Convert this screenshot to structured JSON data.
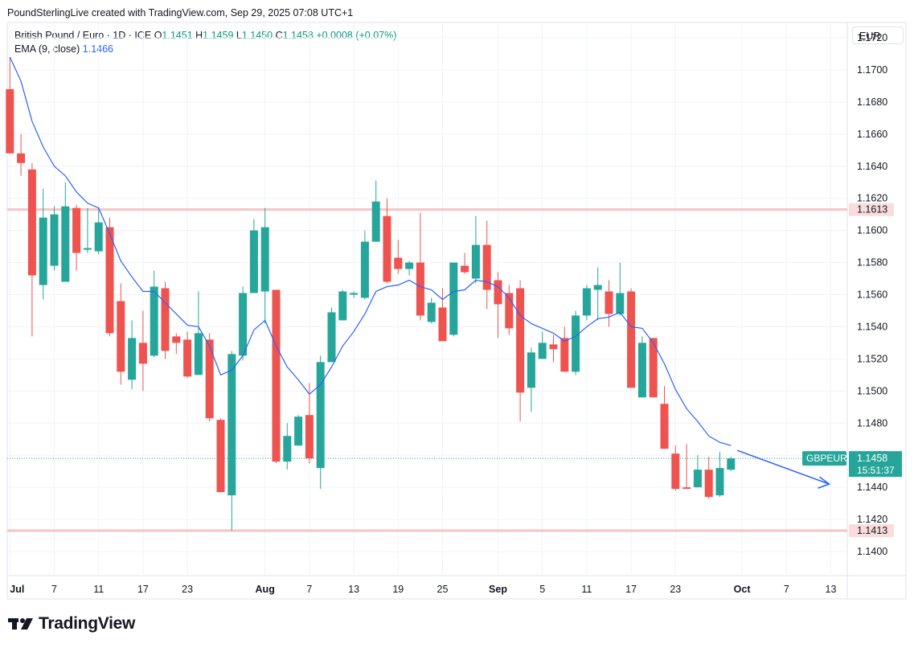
{
  "header": {
    "credit": "PoundSterlingLive created with TradingView.com, Sep 29, 2025 07:08 UTC+1"
  },
  "legend": {
    "symbol": "British Pound / Euro · 1D · ICE",
    "o_label": "O",
    "o_value": "1.1451",
    "h_label": "H",
    "h_value": "1.1459",
    "l_label": "L",
    "l_value": "1.1450",
    "c_label": "C",
    "c_value": "1.1458",
    "change": "+0.0008 (+0.07%)",
    "ema_label": "EMA (9, close)",
    "ema_value": "1.1466"
  },
  "currency_label": "EUR",
  "logo_text": "TradingView",
  "colors": {
    "up": "#26a69a",
    "down": "#ef5350",
    "ema": "#2962ff",
    "hline": "#f5c5c5",
    "grid": "#f0f3fa"
  },
  "chart_data": {
    "type": "candlestick",
    "symbol": "GBPEUR",
    "y_axis_ticks": [
      "1.1720",
      "1.1700",
      "1.1680",
      "1.1660",
      "1.1640",
      "1.1620",
      "1.1600",
      "1.1580",
      "1.1560",
      "1.1540",
      "1.1520",
      "1.1500",
      "1.1480",
      "1.1460",
      "1.1440",
      "1.1420",
      "1.1400"
    ],
    "ylim": [
      1.1386,
      1.1735
    ],
    "x_axis_ticks": [
      {
        "label": "Jul",
        "slot": 0,
        "bold": true
      },
      {
        "label": "7",
        "slot": 4
      },
      {
        "label": "11",
        "slot": 8
      },
      {
        "label": "17",
        "slot": 12
      },
      {
        "label": "23",
        "slot": 16
      },
      {
        "label": "Aug",
        "slot": 23,
        "bold": true
      },
      {
        "label": "7",
        "slot": 27
      },
      {
        "label": "13",
        "slot": 31
      },
      {
        "label": "19",
        "slot": 35
      },
      {
        "label": "25",
        "slot": 39
      },
      {
        "label": "Sep",
        "slot": 44,
        "bold": true
      },
      {
        "label": "5",
        "slot": 48
      },
      {
        "label": "11",
        "slot": 52
      },
      {
        "label": "17",
        "slot": 56
      },
      {
        "label": "23",
        "slot": 60
      },
      {
        "label": "Oct",
        "slot": 66,
        "bold": true
      },
      {
        "label": "7",
        "slot": 70
      },
      {
        "label": "13",
        "slot": 74
      }
    ],
    "candles": [
      {
        "o": 1.1688,
        "h": 1.1708,
        "l": 1.1648,
        "c": 1.1648
      },
      {
        "o": 1.1648,
        "h": 1.166,
        "l": 1.1634,
        "c": 1.1642
      },
      {
        "o": 1.1638,
        "h": 1.1642,
        "l": 1.1534,
        "c": 1.1572
      },
      {
        "o": 1.1566,
        "h": 1.1626,
        "l": 1.1557,
        "c": 1.1608
      },
      {
        "o": 1.1578,
        "h": 1.1615,
        "l": 1.1575,
        "c": 1.161
      },
      {
        "o": 1.1568,
        "h": 1.163,
        "l": 1.1568,
        "c": 1.1615
      },
      {
        "o": 1.1614,
        "h": 1.1616,
        "l": 1.1575,
        "c": 1.1586
      },
      {
        "o": 1.1588,
        "h": 1.1614,
        "l": 1.1586,
        "c": 1.1589
      },
      {
        "o": 1.1587,
        "h": 1.1614,
        "l": 1.1585,
        "c": 1.1605
      },
      {
        "o": 1.1602,
        "h": 1.1608,
        "l": 1.1534,
        "c": 1.1536
      },
      {
        "o": 1.1556,
        "h": 1.1567,
        "l": 1.1504,
        "c": 1.1512
      },
      {
        "o": 1.1507,
        "h": 1.1544,
        "l": 1.1501,
        "c": 1.1533
      },
      {
        "o": 1.153,
        "h": 1.155,
        "l": 1.15,
        "c": 1.1517
      },
      {
        "o": 1.1522,
        "h": 1.1575,
        "l": 1.1521,
        "c": 1.1565
      },
      {
        "o": 1.1564,
        "h": 1.1568,
        "l": 1.152,
        "c": 1.1525
      },
      {
        "o": 1.1534,
        "h": 1.1536,
        "l": 1.1523,
        "c": 1.153
      },
      {
        "o": 1.1532,
        "h": 1.1537,
        "l": 1.1508,
        "c": 1.1509
      },
      {
        "o": 1.151,
        "h": 1.1562,
        "l": 1.151,
        "c": 1.1536
      },
      {
        "o": 1.1532,
        "h": 1.1536,
        "l": 1.1481,
        "c": 1.1483
      },
      {
        "o": 1.1482,
        "h": 1.1483,
        "l": 1.1437,
        "c": 1.1437
      },
      {
        "o": 1.1435,
        "h": 1.1525,
        "l": 1.1413,
        "c": 1.1523
      },
      {
        "o": 1.1522,
        "h": 1.1565,
        "l": 1.1519,
        "c": 1.1561
      },
      {
        "o": 1.1561,
        "h": 1.1607,
        "l": 1.1561,
        "c": 1.16
      },
      {
        "o": 1.1562,
        "h": 1.1614,
        "l": 1.1542,
        "c": 1.1602
      },
      {
        "o": 1.1563,
        "h": 1.1563,
        "l": 1.1455,
        "c": 1.1456
      },
      {
        "o": 1.1456,
        "h": 1.148,
        "l": 1.1451,
        "c": 1.1472
      },
      {
        "o": 1.1466,
        "h": 1.1485,
        "l": 1.1466,
        "c": 1.1484
      },
      {
        "o": 1.1485,
        "h": 1.1505,
        "l": 1.1455,
        "c": 1.1458
      },
      {
        "o": 1.1452,
        "h": 1.1522,
        "l": 1.1439,
        "c": 1.1518
      },
      {
        "o": 1.1518,
        "h": 1.1552,
        "l": 1.1518,
        "c": 1.1549
      },
      {
        "o": 1.1544,
        "h": 1.1563,
        "l": 1.1544,
        "c": 1.1562
      },
      {
        "o": 1.156,
        "h": 1.1562,
        "l": 1.1558,
        "c": 1.1561
      },
      {
        "o": 1.1558,
        "h": 1.16,
        "l": 1.1557,
        "c": 1.1593
      },
      {
        "o": 1.1593,
        "h": 1.1631,
        "l": 1.1593,
        "c": 1.1618
      },
      {
        "o": 1.1609,
        "h": 1.162,
        "l": 1.1567,
        "c": 1.1568
      },
      {
        "o": 1.1583,
        "h": 1.1594,
        "l": 1.1573,
        "c": 1.1576
      },
      {
        "o": 1.1576,
        "h": 1.1581,
        "l": 1.1572,
        "c": 1.158
      },
      {
        "o": 1.158,
        "h": 1.1611,
        "l": 1.1544,
        "c": 1.1547
      },
      {
        "o": 1.1543,
        "h": 1.1558,
        "l": 1.1542,
        "c": 1.1555
      },
      {
        "o": 1.1552,
        "h": 1.1564,
        "l": 1.1534,
        "c": 1.1531
      },
      {
        "o": 1.1535,
        "h": 1.1577,
        "l": 1.1534,
        "c": 1.158
      },
      {
        "o": 1.1578,
        "h": 1.1586,
        "l": 1.1573,
        "c": 1.1574
      },
      {
        "o": 1.157,
        "h": 1.1609,
        "l": 1.1567,
        "c": 1.1591
      },
      {
        "o": 1.1591,
        "h": 1.1606,
        "l": 1.1551,
        "c": 1.1563
      },
      {
        "o": 1.1569,
        "h": 1.1574,
        "l": 1.1533,
        "c": 1.1554
      },
      {
        "o": 1.1561,
        "h": 1.1566,
        "l": 1.1535,
        "c": 1.1539
      },
      {
        "o": 1.1564,
        "h": 1.1569,
        "l": 1.1481,
        "c": 1.1499
      },
      {
        "o": 1.1502,
        "h": 1.1527,
        "l": 1.1487,
        "c": 1.1524
      },
      {
        "o": 1.152,
        "h": 1.1537,
        "l": 1.152,
        "c": 1.153
      },
      {
        "o": 1.1529,
        "h": 1.1535,
        "l": 1.1518,
        "c": 1.1526
      },
      {
        "o": 1.1533,
        "h": 1.154,
        "l": 1.1512,
        "c": 1.1512
      },
      {
        "o": 1.1512,
        "h": 1.155,
        "l": 1.151,
        "c": 1.1547
      },
      {
        "o": 1.1547,
        "h": 1.1566,
        "l": 1.1544,
        "c": 1.1564
      },
      {
        "o": 1.1563,
        "h": 1.1577,
        "l": 1.1544,
        "c": 1.1566
      },
      {
        "o": 1.1562,
        "h": 1.1569,
        "l": 1.154,
        "c": 1.1548
      },
      {
        "o": 1.1548,
        "h": 1.158,
        "l": 1.1547,
        "c": 1.1561
      },
      {
        "o": 1.1562,
        "h": 1.1564,
        "l": 1.1502,
        "c": 1.1502
      },
      {
        "o": 1.1496,
        "h": 1.1534,
        "l": 1.1496,
        "c": 1.153
      },
      {
        "o": 1.1533,
        "h": 1.1533,
        "l": 1.1496,
        "c": 1.1496
      },
      {
        "o": 1.1492,
        "h": 1.1503,
        "l": 1.1464,
        "c": 1.1464
      },
      {
        "o": 1.1461,
        "h": 1.1466,
        "l": 1.1438,
        "c": 1.1439
      },
      {
        "o": 1.144,
        "h": 1.1467,
        "l": 1.1439,
        "c": 1.1439
      },
      {
        "o": 1.144,
        "h": 1.146,
        "l": 1.144,
        "c": 1.1451
      },
      {
        "o": 1.1451,
        "h": 1.1459,
        "l": 1.1433,
        "c": 1.1434
      },
      {
        "o": 1.1435,
        "h": 1.1462,
        "l": 1.1434,
        "c": 1.1452
      },
      {
        "o": 1.1451,
        "h": 1.1459,
        "l": 1.145,
        "c": 1.1458
      }
    ],
    "ema": {
      "name": "EMA (9, close)",
      "values": [
        1.1708,
        1.1693,
        1.1668,
        1.1652,
        1.164,
        1.1634,
        1.1624,
        1.1617,
        1.1614,
        1.1598,
        1.1581,
        1.1571,
        1.1562,
        1.1562,
        1.1555,
        1.1548,
        1.1541,
        1.154,
        1.1528,
        1.151,
        1.1513,
        1.1522,
        1.1538,
        1.1544,
        1.1528,
        1.1515,
        1.1507,
        1.1498,
        1.1504,
        1.1515,
        1.1528,
        1.1537,
        1.1548,
        1.1562,
        1.1565,
        1.1566,
        1.1569,
        1.1565,
        1.1563,
        1.1557,
        1.1562,
        1.1563,
        1.1569,
        1.1568,
        1.1565,
        1.1558,
        1.1547,
        1.1542,
        1.1539,
        1.1536,
        1.1531,
        1.1534,
        1.154,
        1.1545,
        1.1546,
        1.1549,
        1.154,
        1.1539,
        1.153,
        1.1517,
        1.1501,
        1.1489,
        1.1481,
        1.1472,
        1.1468,
        1.1466
      ]
    },
    "horizontal_lines": [
      1.1613,
      1.1413
    ],
    "hline_labels": [
      "1.1613",
      "1.1413"
    ],
    "price_label": {
      "symbol": "GBPEUR",
      "price": "1.1458",
      "countdown": "15:51:37",
      "value": 1.1458
    },
    "last_price": 1.1458,
    "projection_arrow": {
      "from": {
        "slot": 66,
        "y": 1.1463
      },
      "to": {
        "slot": 74,
        "y": 1.1442
      }
    }
  }
}
